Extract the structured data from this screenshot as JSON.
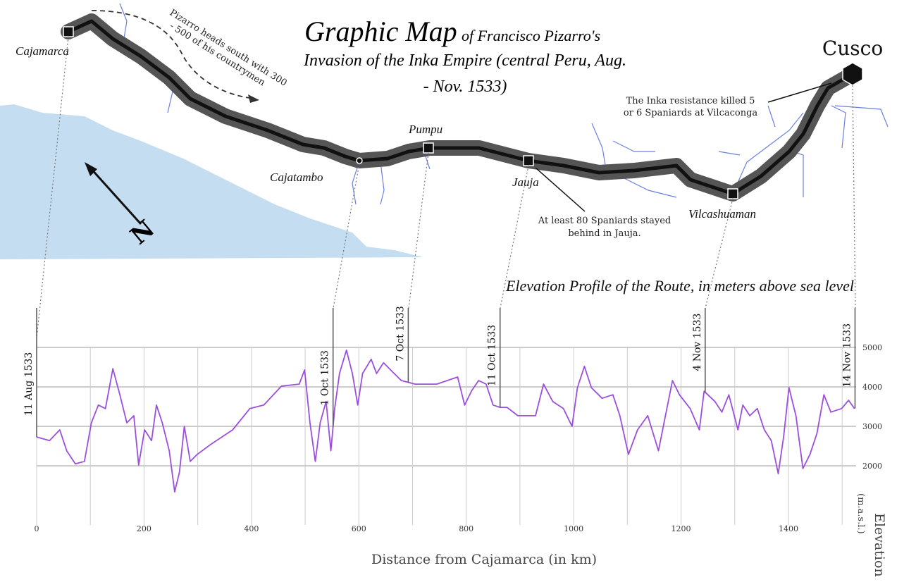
{
  "map": {
    "title": [
      "Graphic Map",
      "of Francisco Pizarro's",
      "Invasion of the Inka Empire (central Peru, Aug.",
      "- Nov. 1533)"
    ],
    "places": [
      "Cajamarca",
      "Cajatambo",
      "Pumpu",
      "Jauja",
      "Vilcashuaman",
      "Cusco"
    ],
    "annotations": [
      [
        "Pizarro heads south with 300",
        "- 500 of his countrymen"
      ],
      [
        "At least 80 Spaniards stayed",
        "behind in Jauja."
      ],
      [
        "The Inka resistance killed 5",
        "or 6 Spaniards at Vilcaconga"
      ]
    ],
    "north": "N"
  },
  "chart_data": {
    "type": "line",
    "title": "Elevation Profile of the Route, in meters above sea level",
    "xlabel": "Distance from Cajamarca (in km)",
    "ylabel": [
      "Elevation",
      "(m.a.s.l.)"
    ],
    "xlim": [
      0,
      1526
    ],
    "ylim": [
      500,
      5000
    ],
    "xticks": [
      0,
      200,
      400,
      600,
      800,
      1000,
      1200,
      1400
    ],
    "xminor": [
      100,
      300,
      500,
      700,
      900,
      1100,
      1300,
      1500
    ],
    "yticks": [
      2000,
      3000,
      4000,
      5000
    ],
    "grid": true,
    "series": [
      {
        "color": "#9b4fdc",
        "x": [
          0,
          24,
          43,
          56,
          72,
          89,
          102,
          115,
          128,
          142,
          155,
          168,
          181,
          190,
          201,
          214,
          223,
          234,
          247,
          257,
          266,
          275,
          286,
          299,
          325,
          365,
          397,
          423,
          456,
          489,
          499,
          509,
          519,
          528,
          539,
          548,
          555,
          564,
          577,
          588,
          598,
          607,
          623,
          633,
          646,
          659,
          679,
          705,
          745,
          784,
          797,
          810,
          823,
          837,
          850,
          863,
          876,
          896,
          929,
          944,
          961,
          981,
          997,
          1007,
          1020,
          1033,
          1053,
          1073,
          1086,
          1102,
          1119,
          1138,
          1158,
          1171,
          1184,
          1197,
          1217,
          1234,
          1243,
          1263,
          1276,
          1289,
          1306,
          1315,
          1328,
          1342,
          1355,
          1368,
          1381,
          1391,
          1401,
          1414,
          1427,
          1440,
          1453,
          1466,
          1479,
          1499,
          1512,
          1523
        ],
        "values": [
          2730,
          2640,
          2910,
          2380,
          2050,
          2110,
          3090,
          3540,
          3450,
          4460,
          3800,
          3090,
          3270,
          2020,
          2910,
          2640,
          3540,
          3090,
          2380,
          1340,
          1840,
          3000,
          2110,
          2290,
          2550,
          2910,
          3450,
          3540,
          4020,
          4070,
          4430,
          3090,
          2110,
          3090,
          3630,
          2380,
          3450,
          4340,
          4930,
          4340,
          3540,
          4340,
          4700,
          4340,
          4610,
          4430,
          4160,
          4070,
          4070,
          4250,
          3540,
          3900,
          4160,
          4070,
          3540,
          3480,
          3480,
          3270,
          3270,
          4070,
          3630,
          3450,
          3000,
          3980,
          4520,
          3980,
          3710,
          3800,
          3270,
          2290,
          2910,
          3270,
          2380,
          3270,
          4160,
          3800,
          3450,
          2910,
          3890,
          3630,
          3360,
          3800,
          2910,
          3540,
          3270,
          3450,
          2910,
          2640,
          1800,
          2730,
          3980,
          3270,
          1930,
          2290,
          2820,
          3800,
          3360,
          3450,
          3660,
          3450
        ]
      }
    ],
    "date_markers": [
      {
        "label": "11 Aug 1533",
        "x": 0
      },
      {
        "label": "1 Oct 1533",
        "x": 552
      },
      {
        "label": "7 Oct 1533",
        "x": 692
      },
      {
        "label": "11 Oct 1533",
        "x": 863
      },
      {
        "label": "4 Nov 1533",
        "x": 1245
      },
      {
        "label": "14 Nov 1533",
        "x": 1524
      }
    ]
  }
}
